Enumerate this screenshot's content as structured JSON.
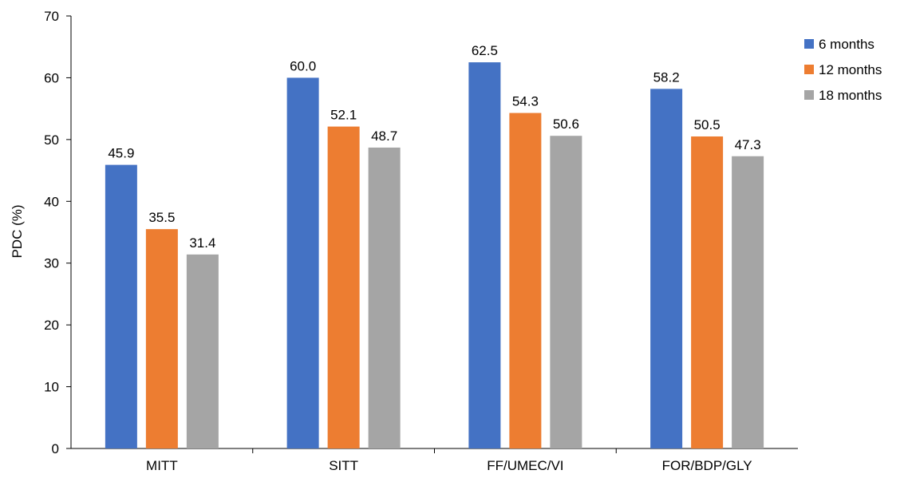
{
  "chart_data": {
    "type": "bar",
    "title": "",
    "xlabel": "",
    "ylabel": "PDC (%)",
    "ylim": [
      0,
      70
    ],
    "yticks": [
      0,
      10,
      20,
      30,
      40,
      50,
      60,
      70
    ],
    "categories": [
      "MITT",
      "SITT",
      "FF/UMEC/VI",
      "FOR/BDP/GLY"
    ],
    "series": [
      {
        "name": "6 months",
        "color": "#4472C4",
        "values": [
          45.9,
          60.0,
          62.5,
          58.2
        ],
        "labels": [
          "45.9",
          "60.0",
          "62.5",
          "58.2"
        ]
      },
      {
        "name": "12 months",
        "color": "#ED7D31",
        "values": [
          35.5,
          52.1,
          54.3,
          50.5
        ],
        "labels": [
          "35.5",
          "52.1",
          "54.3",
          "50.5"
        ]
      },
      {
        "name": "18 months",
        "color": "#A5A5A5",
        "values": [
          31.4,
          48.7,
          50.6,
          47.3
        ],
        "labels": [
          "31.4",
          "48.7",
          "50.6",
          "47.3"
        ]
      }
    ],
    "grid": false,
    "legend_position": "right-top"
  }
}
